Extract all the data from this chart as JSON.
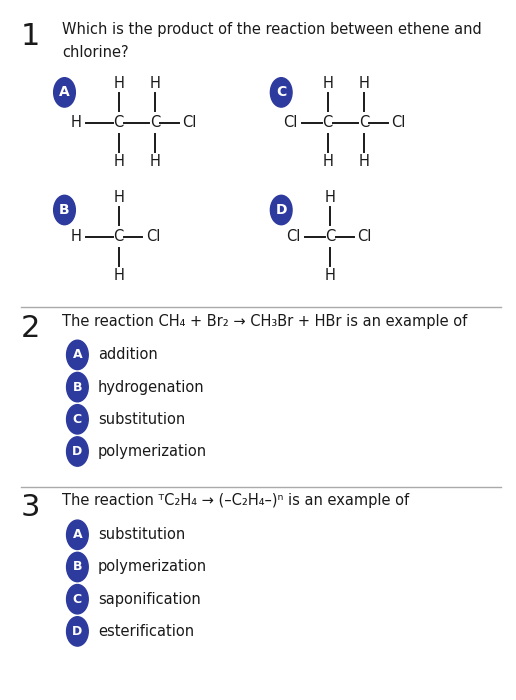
{
  "bg_color": "#ffffff",
  "badge_color": "#2d3a9e",
  "badge_text_color": "#ffffff",
  "text_color": "#1a1a1a",
  "divider_color": "#aaaaaa",
  "option_labels": [
    "A",
    "B",
    "C",
    "D"
  ],
  "q2_options": [
    "addition",
    "hydrogenation",
    "substitution",
    "polymerization"
  ],
  "q3_options": [
    "substitution",
    "polymerization",
    "saponification",
    "esterification"
  ]
}
